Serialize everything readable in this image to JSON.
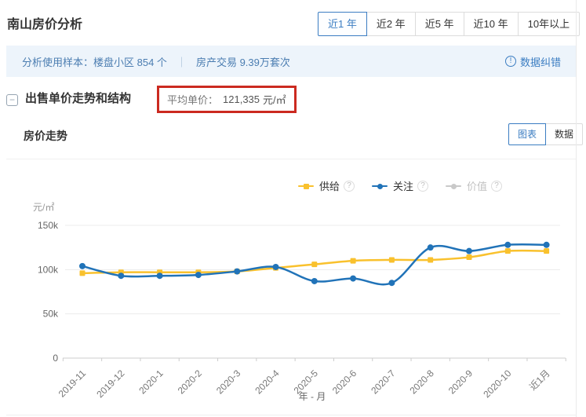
{
  "page": {
    "title": "南山房价分析"
  },
  "period_tabs": {
    "items": [
      {
        "label": "近1 年",
        "selected": true
      },
      {
        "label": "近2 年",
        "selected": false
      },
      {
        "label": "近5 年",
        "selected": false
      },
      {
        "label": "近10 年",
        "selected": false
      },
      {
        "label": "10年以上",
        "selected": false
      }
    ]
  },
  "sample_bar": {
    "prefix": "分析使用样本：",
    "sample1": "楼盘小区 854 个",
    "divider": "｜",
    "sample2": "房产交易 9.39万套次",
    "data_correction": "数据纠错"
  },
  "section": {
    "title": "出售单价走势和结构",
    "avg_label": "平均单价：",
    "avg_value": "121,335",
    "avg_unit": "元/㎡"
  },
  "trend": {
    "title": "房价走势",
    "toggle": [
      {
        "label": "图表",
        "selected": true
      },
      {
        "label": "数据",
        "selected": false
      }
    ]
  },
  "icons": {
    "info": "!",
    "help": "?",
    "collapse": "−"
  },
  "colors": {
    "accent": "#3b7dc2",
    "highlight_box_red": "#cb2a20",
    "sample_bar_bg": "#edf4fb",
    "sample_bar_text": "#4b7db1",
    "line_supply": "#f9c12d",
    "line_attention": "#2173b8",
    "line_disabled": "#c9c9c9",
    "axis_text": "#666666",
    "grid_line": "#ececec",
    "axis_line": "#cccccc"
  },
  "chart_data": {
    "type": "line",
    "title": "房价走势",
    "unit_label": "元/㎡",
    "xlabel": "年 - 月",
    "x": [
      "2019-11",
      "2019-12",
      "2020-1",
      "2020-2",
      "2020-3",
      "2020-4",
      "2020-5",
      "2020-6",
      "2020-7",
      "2020-8",
      "2020-9",
      "2020-10",
      "近1月"
    ],
    "series": [
      {
        "name": "供给",
        "color": "#f9c12d",
        "marker": "square",
        "visible": true,
        "values_k": [
          96,
          97,
          97,
          97,
          98,
          102,
          106,
          110,
          111,
          111,
          114,
          121,
          121
        ]
      },
      {
        "name": "关注",
        "color": "#2173b8",
        "marker": "circle",
        "visible": true,
        "values_k": [
          104,
          93,
          93,
          94,
          98,
          103,
          87,
          90,
          85,
          125,
          121,
          128,
          128
        ]
      },
      {
        "name": "价值",
        "color": "#c9c9c9",
        "marker": "circle",
        "visible": false,
        "values_k": null
      }
    ],
    "ylim_k": [
      0,
      150
    ],
    "y_ticks": [
      {
        "label": "150k",
        "value": 150
      },
      {
        "label": "100k",
        "value": 100
      },
      {
        "label": "50k",
        "value": 50
      },
      {
        "label": "0",
        "value": 0
      }
    ],
    "grid": true,
    "legend_position": "top-right",
    "smooth": true
  }
}
